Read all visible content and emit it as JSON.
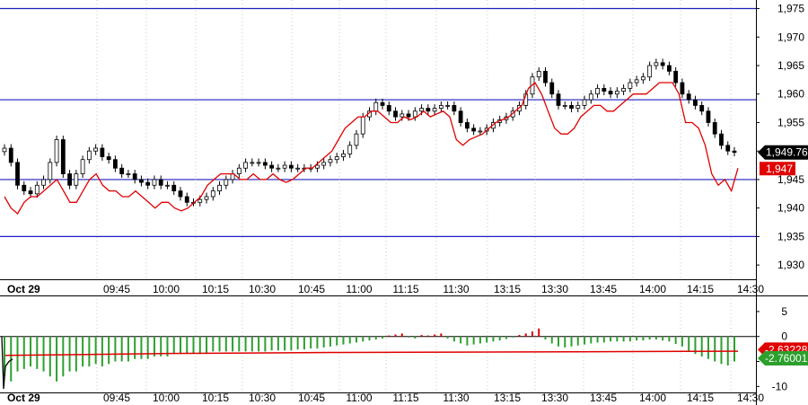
{
  "chart_data": [
    {
      "type": "candlestick",
      "panel": "price",
      "y_ticks": [
        "1,975",
        "1,970",
        "1,965",
        "1,960",
        "1,955",
        "1,950",
        "1,945",
        "1,940",
        "1,935",
        "1,930"
      ],
      "y_tick_values": [
        1975,
        1970,
        1965,
        1960,
        1955,
        1950,
        1945,
        1940,
        1935,
        1930
      ],
      "ylim": [
        1927.5,
        1976.5
      ],
      "x_date_label": "Oct 29",
      "x_tick_labels": [
        "09:45",
        "10:00",
        "10:15",
        "10:30",
        "10:45",
        "11:00",
        "11:15",
        "11:30",
        "13:15",
        "13:30",
        "13:45",
        "14:00",
        "14:15",
        "14:30"
      ],
      "horizontal_levels": [
        1975,
        1959,
        1945,
        1935
      ],
      "current_value_label": "1,949.76",
      "current_value": 1949.76,
      "secondary_value_label": "1,947",
      "secondary_value": 1947,
      "candles_close": [
        1950.5,
        1948,
        1944,
        1943,
        1942.5,
        1944,
        1945,
        1948,
        1952,
        1946,
        1944,
        1946,
        1948.5,
        1950,
        1950.5,
        1949,
        1948.5,
        1947,
        1946,
        1946,
        1945,
        1944.5,
        1944,
        1945,
        1944,
        1944,
        1943,
        1942,
        1941,
        1941,
        1941.5,
        1942,
        1943,
        1944,
        1945,
        1946,
        1947,
        1948,
        1948,
        1948,
        1947.5,
        1947,
        1947,
        1947.5,
        1947,
        1947,
        1947,
        1947,
        1947.5,
        1948,
        1948.5,
        1949,
        1949.5,
        1951,
        1953,
        1956,
        1957,
        1958.5,
        1958,
        1957,
        1956,
        1956.5,
        1956,
        1957,
        1957.5,
        1957,
        1957.5,
        1958,
        1958,
        1957,
        1955,
        1954,
        1953.5,
        1953.5,
        1954,
        1955,
        1955.5,
        1956,
        1957,
        1958,
        1960,
        1963,
        1964,
        1962,
        1960,
        1958,
        1958,
        1957.5,
        1958,
        1959,
        1960,
        1961,
        1960.5,
        1960,
        1960.5,
        1961,
        1962,
        1962.5,
        1963,
        1965,
        1965.5,
        1965,
        1964,
        1962,
        1960,
        1959,
        1958,
        1957,
        1955,
        1953,
        1951,
        1950,
        1949.76
      ],
      "close_line": [
        1942,
        1940,
        1939,
        1941,
        1942,
        1942,
        1943,
        1944,
        1945,
        1943,
        1941,
        1941,
        1943,
        1945,
        1946,
        1944,
        1943,
        1943,
        1942,
        1942,
        1943,
        1942,
        1941,
        1940,
        1941,
        1941,
        1940,
        1939.5,
        1940,
        1941,
        1942,
        1944,
        1945,
        1946,
        1946,
        1946,
        1945,
        1945,
        1946,
        1945,
        1945,
        1946,
        1945,
        1944.5,
        1945,
        1946,
        1947,
        1947,
        1948,
        1949,
        1950,
        1952,
        1954,
        1955,
        1956,
        1956,
        1957,
        1957,
        1956,
        1955,
        1955,
        1956,
        1955.5,
        1956,
        1957,
        1956,
        1956.5,
        1957,
        1956,
        1952,
        1951,
        1952,
        1952.5,
        1953,
        1954,
        1955,
        1955.5,
        1956,
        1957,
        1958,
        1961,
        1962,
        1960,
        1957,
        1954,
        1953,
        1953,
        1954,
        1956,
        1957,
        1958,
        1958,
        1957,
        1957,
        1958,
        1959,
        1960,
        1960,
        1960,
        1961,
        1962,
        1962,
        1962,
        1960,
        1955,
        1955,
        1954,
        1951,
        1946,
        1944,
        1945,
        1943,
        1947
      ]
    },
    {
      "type": "histogram",
      "panel": "indicator",
      "y_ticks": [
        "5",
        "0",
        "-5",
        "-10"
      ],
      "y_tick_values": [
        5,
        0,
        -5,
        -10
      ],
      "ylim": [
        -11.2,
        7.5
      ],
      "labels": [
        "-2.63228",
        "-2.76001"
      ],
      "label_values": [
        -2.63228,
        -2.76001
      ],
      "bars": [
        -8,
        -9,
        -7,
        -6.5,
        -6,
        -6.5,
        -7,
        -8,
        -9,
        -8,
        -7,
        -7,
        -6,
        -6,
        -5.5,
        -6,
        -5.5,
        -5,
        -5,
        -5,
        -4.5,
        -4.5,
        -4.5,
        -4,
        -4,
        -4,
        -3.5,
        -3.5,
        -3.5,
        -3.5,
        -3.5,
        -3.5,
        -3,
        -3,
        -3,
        -3,
        -3,
        -3,
        -3,
        -3,
        -3,
        -2.8,
        -2.8,
        -2.8,
        -2.8,
        -2.6,
        -2.6,
        -2.4,
        -2.4,
        -2.2,
        -2,
        -1.8,
        -1.6,
        -1.4,
        -1.2,
        -1,
        -0.8,
        -0.6,
        -0.4,
        0.2,
        0.4,
        0.6,
        -0.2,
        -0.4,
        0.3,
        0.2,
        0.4,
        0.6,
        -0.4,
        -1,
        -1.4,
        -1.8,
        -1.6,
        -1.4,
        -1.2,
        -1,
        -0.8,
        -0.5,
        -0.2,
        0.3,
        0.6,
        1,
        1.6,
        -0.6,
        -1.4,
        -2,
        -2.2,
        -2,
        -1.8,
        -1.6,
        -1.4,
        -1.2,
        -1.2,
        -1,
        -1,
        -1,
        -1,
        -0.8,
        -0.8,
        -0.6,
        -0.6,
        -0.8,
        -1,
        -1.5,
        -2,
        -3,
        -3.5,
        -4,
        -4.5,
        -5,
        -5.5,
        -5.8,
        -5
      ],
      "signal_line": [
        -3.8,
        -3.6,
        -3.4,
        -3.3,
        -3.2,
        -3.15,
        -3.1,
        -3.05,
        -3.0,
        -2.95
      ]
    }
  ]
}
